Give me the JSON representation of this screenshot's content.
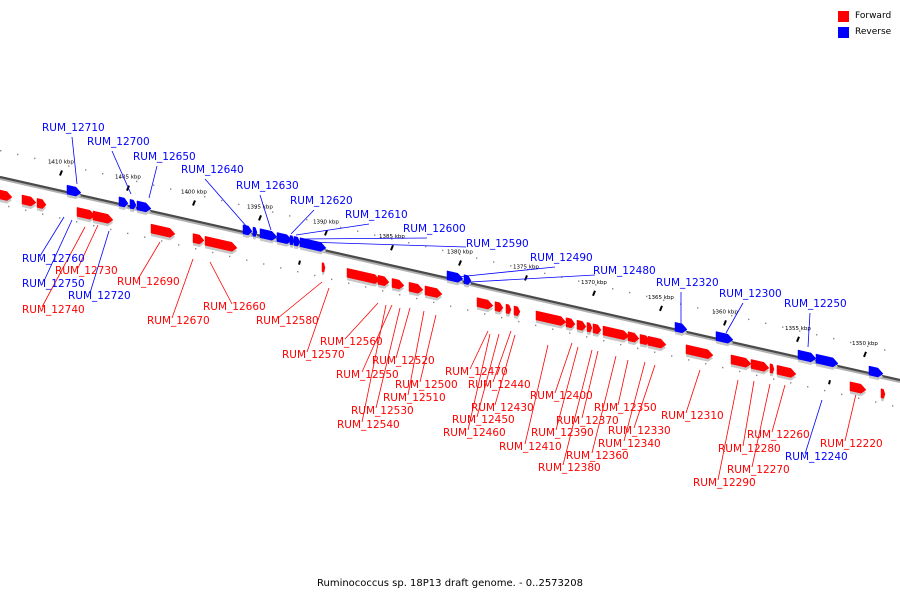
{
  "legend": {
    "forward_label": "Forward",
    "reverse_label": "Reverse",
    "forward_color": "#ff0000",
    "reverse_color": "#0000ff"
  },
  "footer": "Ruminococcus sp. 18P13 draft genome. - 0..2573208",
  "ticks": [
    "1410 kbp",
    "1405 kbp",
    "1400 kbp",
    "1395 kbp",
    "1390 kbp",
    "1385 kbp",
    "1380 kbp",
    "1375 kbp",
    "1370 kbp",
    "1365 kbp",
    "1360 kbp",
    "1355 kbp",
    "1350 kbp"
  ],
  "genes": {
    "reverse": [
      "RUM_12710",
      "RUM_12700",
      "RUM_12650",
      "RUM_12640",
      "RUM_12630",
      "RUM_12620",
      "RUM_12610",
      "RUM_12600",
      "RUM_12590",
      "RUM_12490",
      "RUM_12480",
      "RUM_12320",
      "RUM_12300",
      "RUM_12250",
      "RUM_12760",
      "RUM_12750",
      "RUM_12720",
      "RUM_12240"
    ],
    "forward": [
      "RUM_12730",
      "RUM_12740",
      "RUM_12690",
      "RUM_12670",
      "RUM_12660",
      "RUM_12580",
      "RUM_12570",
      "RUM_12560",
      "RUM_12550",
      "RUM_12520",
      "RUM_12530",
      "RUM_12540",
      "RUM_12510",
      "RUM_12500",
      "RUM_12470",
      "RUM_12440",
      "RUM_12430",
      "RUM_12450",
      "RUM_12460",
      "RUM_12400",
      "RUM_12410",
      "RUM_12390",
      "RUM_12380",
      "RUM_12370",
      "RUM_12360",
      "RUM_12350",
      "RUM_12340",
      "RUM_12330",
      "RUM_12310",
      "RUM_12280",
      "RUM_12290",
      "RUM_12270",
      "RUM_12260",
      "RUM_12220"
    ]
  }
}
